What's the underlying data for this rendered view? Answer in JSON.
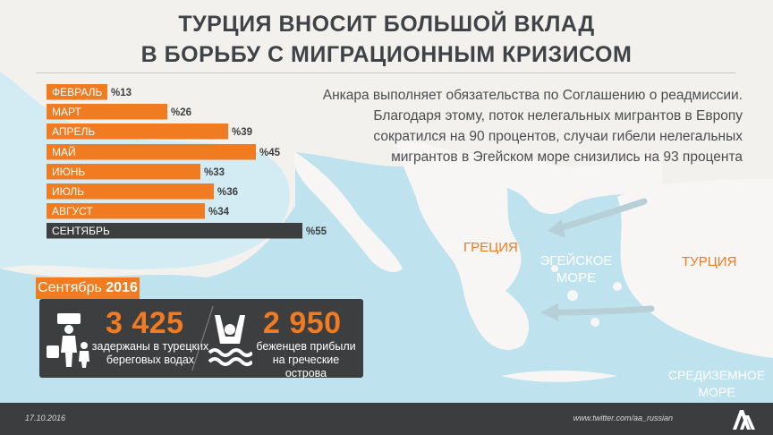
{
  "header": {
    "title_line1": "ТУРЦИЯ ВНОСИТ БОЛЬШОЙ ВКЛАД",
    "title_line2": "В БОРЬБУ С МИГРАЦИОННЫМ КРИЗИСОМ"
  },
  "description": {
    "line1": "Анкара выполняет обязательства по Соглашению о реадмиссии.",
    "line2": "Благодаря этому, поток нелегальных мигрантов в Европу",
    "line3": "сократился на 90 процентов, случаи гибели нелегальных",
    "line4": "мигрантов в Эгейском море снизились на 93 процента"
  },
  "chart_data": {
    "type": "bar",
    "orientation": "horizontal",
    "categories": [
      "ФЕВРАЛЬ",
      "МАРТ",
      "АПРЕЛЬ",
      "МАЙ",
      "ИЮНЬ",
      "ИЮЛЬ",
      "АВГУСТ",
      "СЕНТЯБРЬ"
    ],
    "values": [
      13,
      26,
      39,
      45,
      33,
      36,
      34,
      55
    ],
    "value_labels": [
      "%13",
      "%26",
      "%39",
      "%45",
      "%33",
      "%36",
      "%34",
      "%55"
    ],
    "bar_colors": [
      "#f07b20",
      "#f07b20",
      "#f07b20",
      "#f07b20",
      "#f07b20",
      "#f07b20",
      "#f07b20",
      "#3d3e40"
    ],
    "unit": "%",
    "xlim": [
      0,
      55
    ],
    "grid": false,
    "legend": "none"
  },
  "map": {
    "greece": "ГРЕЦИЯ",
    "turkey": "ТУРЦИЯ",
    "aegean_line1": "ЭГЕЙСКОЕ",
    "aegean_line2": "МОРЕ",
    "med_line1": "СРЕДИЗЕМНОЕ",
    "med_line2": "МОРЕ"
  },
  "september": {
    "badge_month": "Сентябрь",
    "badge_year": "2016",
    "detained_number": "3 425",
    "detained_line1": "задержаны в турецких",
    "detained_line2": "береговых водах",
    "arrived_number": "2 950",
    "arrived_line1": "беженцев прибыли",
    "arrived_line2": "на греческие острова"
  },
  "footer": {
    "date": "17.10.2016",
    "url": "www.twitter.com/aa_russian"
  },
  "colors": {
    "accent": "#f07b20",
    "dark": "#3d3e40",
    "background": "#f3f1ee"
  },
  "icons": [
    "family-migrants-icon",
    "swimmer-icon",
    "aa-logo-icon"
  ]
}
